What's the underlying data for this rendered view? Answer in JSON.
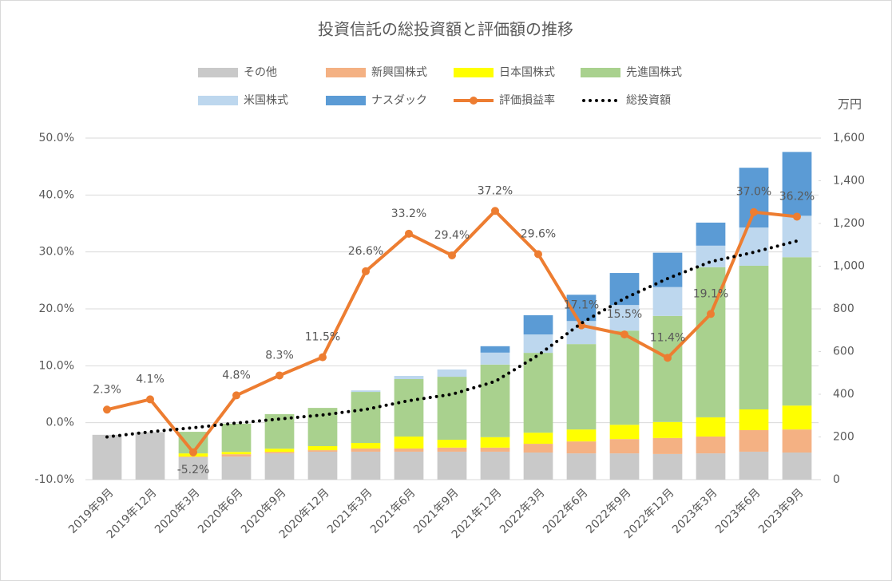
{
  "chart_data": {
    "type": "combo",
    "title": "投資信託の総投資額と評価額の推移",
    "categories": [
      "2019年9月",
      "2019年12月",
      "2020年3月",
      "2020年6月",
      "2020年9月",
      "2020年12月",
      "2021年3月",
      "2021年6月",
      "2021年9月",
      "2021年12月",
      "2022年3月",
      "2022年6月",
      "2022年9月",
      "2022年12月",
      "2023年3月",
      "2023年6月",
      "2023年9月"
    ],
    "series": [
      {
        "name": "その他",
        "type": "bar",
        "axis": "y2",
        "color": "#c9c9c9",
        "values": [
          210,
          222,
          105,
          108,
          123,
          131,
          131,
          131,
          131,
          131,
          127,
          123,
          123,
          120,
          123,
          131,
          127
        ]
      },
      {
        "name": "新興国株式",
        "type": "bar",
        "axis": "y2",
        "color": "#f4b183",
        "values": [
          0,
          0,
          3,
          11,
          7,
          7,
          15,
          15,
          19,
          19,
          41,
          56,
          67,
          75,
          79,
          101,
          108
        ]
      },
      {
        "name": "日本国株式",
        "type": "bar",
        "axis": "y2",
        "color": "#ffff00",
        "values": [
          0,
          0,
          15,
          11,
          15,
          19,
          26,
          56,
          37,
          49,
          52,
          56,
          67,
          75,
          90,
          97,
          112
        ]
      },
      {
        "name": "先進国株式",
        "type": "bar",
        "axis": "y2",
        "color": "#a9d18e",
        "values": [
          0,
          0,
          101,
          132,
          162,
          179,
          239,
          269,
          295,
          340,
          374,
          400,
          441,
          497,
          703,
          673,
          695
        ]
      },
      {
        "name": "米国株式",
        "type": "bar",
        "axis": "y2",
        "color": "#bdd7ee",
        "values": [
          0,
          0,
          0,
          0,
          0,
          0,
          7,
          15,
          34,
          56,
          86,
          108,
          120,
          135,
          101,
          179,
          194
        ]
      },
      {
        "name": "ナスダック",
        "type": "bar",
        "axis": "y2",
        "color": "#5b9bd5",
        "values": [
          0,
          0,
          0,
          0,
          0,
          0,
          0,
          0,
          0,
          30,
          90,
          123,
          150,
          161,
          108,
          280,
          299
        ]
      },
      {
        "name": "評価損益率",
        "type": "line",
        "axis": "y",
        "color": "#ed7d31",
        "marker": "circle",
        "values": [
          2.3,
          4.1,
          -5.2,
          4.8,
          8.3,
          11.5,
          26.6,
          33.2,
          29.4,
          37.2,
          29.6,
          17.1,
          15.5,
          11.4,
          19.1,
          37.0,
          36.2
        ],
        "value_labels": [
          "2.3%",
          "4.1%",
          "-5.2%",
          "4.8%",
          "8.3%",
          "11.5%",
          "26.6%",
          "33.2%",
          "29.4%",
          "37.2%",
          "29.6%",
          "17.1%",
          "15.5%",
          "11.4%",
          "19.1%",
          "37.0%",
          "36.2%"
        ]
      },
      {
        "name": "総投資額",
        "type": "line",
        "axis": "y2",
        "color": "#000000",
        "line_style": "dotted",
        "values": [
          200,
          224,
          243,
          265,
          284,
          303,
          329,
          370,
          400,
          460,
          583,
          733,
          849,
          942,
          1021,
          1065,
          1118
        ]
      }
    ],
    "ylim": [
      -10,
      50
    ],
    "yticks": [
      {
        "value": -10,
        "label": "-10.0%"
      },
      {
        "value": 0,
        "label": "0.0%"
      },
      {
        "value": 10,
        "label": "10.0%"
      },
      {
        "value": 20,
        "label": "20.0%"
      },
      {
        "value": 30,
        "label": "30.0%"
      },
      {
        "value": 40,
        "label": "40.0%"
      },
      {
        "value": 50,
        "label": "50.0%"
      }
    ],
    "y2lim": [
      0,
      1600
    ],
    "y2ticks": [
      0,
      200,
      400,
      600,
      800,
      {
        "value": 1000,
        "label": "1,000"
      },
      {
        "value": 1200,
        "label": "1,200"
      },
      {
        "value": 1400,
        "label": "1,400"
      },
      {
        "value": 1600,
        "label": "1,600"
      }
    ],
    "y2_label": "万円",
    "grid": true
  }
}
